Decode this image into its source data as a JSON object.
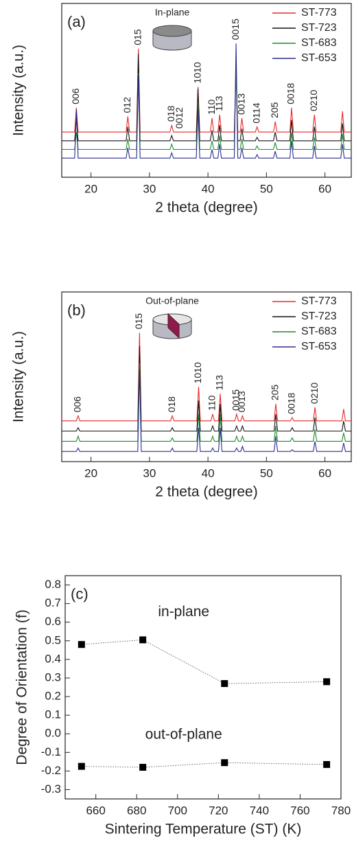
{
  "chart_data": [
    {
      "type": "line",
      "panel_label": "(a)",
      "inset_label": "In-plane",
      "xlabel": "2 theta (degree)",
      "ylabel": "Intensity (a.u.)",
      "xlim": [
        15,
        64.5
      ],
      "xticks": [
        20,
        30,
        40,
        50,
        60
      ],
      "ylim": [
        0,
        100
      ],
      "legend": "upper right",
      "x": [
        15,
        17.2,
        17.5,
        17.8,
        26.0,
        26.3,
        26.6,
        27.8,
        28.1,
        28.4,
        33.5,
        33.8,
        34.1,
        38.0,
        38.3,
        38.6,
        40.4,
        40.7,
        41.0,
        41.7,
        42.0,
        42.3,
        44.5,
        44.8,
        45.1,
        45.5,
        45.8,
        46.1,
        48.1,
        48.4,
        48.7,
        51.2,
        51.5,
        51.8,
        54.0,
        54.3,
        54.6,
        57.9,
        58.2,
        58.5,
        62.7,
        63.0,
        63.3,
        64.5
      ],
      "series": [
        {
          "name": "ST-773",
          "color": "#e8282a",
          "values": [
            26,
            26,
            40,
            26,
            26,
            35,
            26,
            26,
            74,
            26,
            26,
            30,
            26,
            26,
            52,
            26,
            26,
            34,
            26,
            26,
            36,
            26,
            26,
            61,
            26,
            26,
            34,
            26,
            26,
            29,
            26,
            26,
            32,
            26,
            26,
            40,
            26,
            26,
            36,
            26,
            26,
            38,
            26,
            26
          ]
        },
        {
          "name": "ST-723",
          "color": "#111111",
          "values": [
            21,
            21,
            33,
            21,
            21,
            29,
            21,
            21,
            71,
            21,
            21,
            24,
            21,
            21,
            51,
            21,
            21,
            27,
            21,
            21,
            30,
            21,
            21,
            66,
            21,
            21,
            28,
            21,
            21,
            23,
            21,
            21,
            26,
            21,
            21,
            33,
            21,
            21,
            29,
            21,
            21,
            31,
            21,
            21
          ]
        },
        {
          "name": "ST-683",
          "color": "#1a8a2e",
          "values": [
            16,
            16,
            26,
            16,
            16,
            22,
            16,
            16,
            60,
            16,
            16,
            19,
            16,
            16,
            42,
            16,
            16,
            21,
            16,
            16,
            24,
            16,
            16,
            64,
            16,
            16,
            22,
            16,
            16,
            18,
            16,
            16,
            20,
            16,
            16,
            26,
            16,
            16,
            23,
            16,
            16,
            25,
            16,
            16
          ]
        },
        {
          "name": "ST-653",
          "color": "#2b2b8c",
          "values": [
            11,
            11,
            39,
            11,
            11,
            17,
            11,
            11,
            59,
            11,
            11,
            14,
            11,
            11,
            39,
            11,
            11,
            16,
            11,
            11,
            19,
            11,
            11,
            77,
            11,
            11,
            17,
            11,
            11,
            13,
            11,
            11,
            15,
            11,
            11,
            21,
            11,
            11,
            18,
            11,
            11,
            19,
            11,
            11
          ]
        }
      ],
      "annotations": [
        {
          "text": "006",
          "x": 17.5
        },
        {
          "text": "012",
          "x": 26.3
        },
        {
          "text": "015",
          "x": 28.1
        },
        {
          "text": "018",
          "x": 33.8
        },
        {
          "text": "0012",
          "x": 35.2
        },
        {
          "text": "1010",
          "x": 38.3
        },
        {
          "text": "110",
          "x": 40.7
        },
        {
          "text": "113",
          "x": 42.0
        },
        {
          "text": "0015",
          "x": 44.8
        },
        {
          "text": "0013",
          "x": 45.8
        },
        {
          "text": "0114",
          "x": 48.4
        },
        {
          "text": "205",
          "x": 51.5
        },
        {
          "text": "0018",
          "x": 54.3
        },
        {
          "text": "0210",
          "x": 58.2
        }
      ]
    },
    {
      "type": "line",
      "panel_label": "(b)",
      "inset_label": "Out-of-plane",
      "xlabel": "2 theta (degree)",
      "ylabel": "Intensity (a.u.)",
      "xlim": [
        15,
        64.5
      ],
      "xticks": [
        20,
        30,
        40,
        50,
        60
      ],
      "ylim": [
        0,
        100
      ],
      "legend": "upper right",
      "x": [
        15,
        17.5,
        17.8,
        18.1,
        28.0,
        28.3,
        28.6,
        33.6,
        33.9,
        34.2,
        38.1,
        38.4,
        38.7,
        40.5,
        40.8,
        41.1,
        41.8,
        42.1,
        42.4,
        44.6,
        44.9,
        45.2,
        45.6,
        45.9,
        46.2,
        51.3,
        51.6,
        51.9,
        54.1,
        54.4,
        54.7,
        58.0,
        58.3,
        58.6,
        62.9,
        63.2,
        63.5,
        64.5
      ],
      "series": [
        {
          "name": "ST-773",
          "color": "#e8282a",
          "values": [
            24,
            24,
            27,
            24,
            24,
            76,
            24,
            24,
            27,
            24,
            24,
            44,
            24,
            24,
            28,
            24,
            24,
            40,
            24,
            24,
            28,
            24,
            24,
            27,
            24,
            24,
            34,
            24,
            24,
            26,
            24,
            24,
            32,
            24,
            24,
            31,
            24,
            24
          ]
        },
        {
          "name": "ST-723",
          "color": "#111111",
          "values": [
            18,
            18,
            20,
            18,
            18,
            68,
            18,
            18,
            20,
            18,
            18,
            36,
            18,
            18,
            21,
            18,
            18,
            34,
            18,
            18,
            21,
            18,
            18,
            21,
            18,
            18,
            28,
            18,
            18,
            20,
            18,
            18,
            26,
            18,
            18,
            24,
            18,
            18
          ]
        },
        {
          "name": "ST-683",
          "color": "#1a8a2e",
          "values": [
            12,
            12,
            15,
            12,
            12,
            58,
            12,
            12,
            14,
            12,
            12,
            28,
            12,
            12,
            15,
            12,
            12,
            28,
            12,
            12,
            15,
            12,
            12,
            15,
            12,
            12,
            21,
            12,
            12,
            14,
            12,
            12,
            19,
            12,
            12,
            17,
            12,
            12
          ]
        },
        {
          "name": "ST-653",
          "color": "#2b2b8c",
          "values": [
            6,
            6,
            8,
            6,
            6,
            54,
            6,
            6,
            8,
            6,
            6,
            20,
            6,
            6,
            8,
            6,
            6,
            20,
            6,
            6,
            8,
            6,
            6,
            9,
            6,
            6,
            15,
            6,
            6,
            7,
            6,
            6,
            12,
            6,
            6,
            11,
            6,
            6
          ]
        }
      ],
      "annotations": [
        {
          "text": "006",
          "x": 17.8
        },
        {
          "text": "015",
          "x": 28.3
        },
        {
          "text": "018",
          "x": 33.9
        },
        {
          "text": "1010",
          "x": 38.4
        },
        {
          "text": "110",
          "x": 40.8
        },
        {
          "text": "113",
          "x": 42.1
        },
        {
          "text": "0015",
          "x": 44.9
        },
        {
          "text": "0013",
          "x": 45.9
        },
        {
          "text": "205",
          "x": 51.6
        },
        {
          "text": "0018",
          "x": 54.4
        },
        {
          "text": "0210",
          "x": 58.3
        }
      ]
    },
    {
      "type": "scatter",
      "panel_label": "(c)",
      "xlabel": "Sintering Temperature (ST) (K)",
      "ylabel": "Degree of Orientation (f)",
      "xlim": [
        645,
        780
      ],
      "xticks": [
        660,
        680,
        700,
        720,
        740,
        760,
        780
      ],
      "ylim": [
        -0.35,
        0.85
      ],
      "yticks": [
        -0.3,
        -0.2,
        -0.1,
        {
          "value": 0,
          "label": "0.0"
        },
        0.1,
        0.2,
        0.3,
        0.4,
        0.5,
        0.6,
        0.7,
        0.8
      ],
      "marker": "square",
      "linestyle": "dotted",
      "x": [
        653,
        683,
        723,
        773
      ],
      "series": [
        {
          "name": "in-plane",
          "color": "#000000",
          "values": [
            0.48,
            0.505,
            0.27,
            0.28
          ]
        },
        {
          "name": "out-of-plane",
          "color": "#000000",
          "values": [
            -0.175,
            -0.18,
            -0.155,
            -0.165
          ]
        }
      ]
    }
  ]
}
